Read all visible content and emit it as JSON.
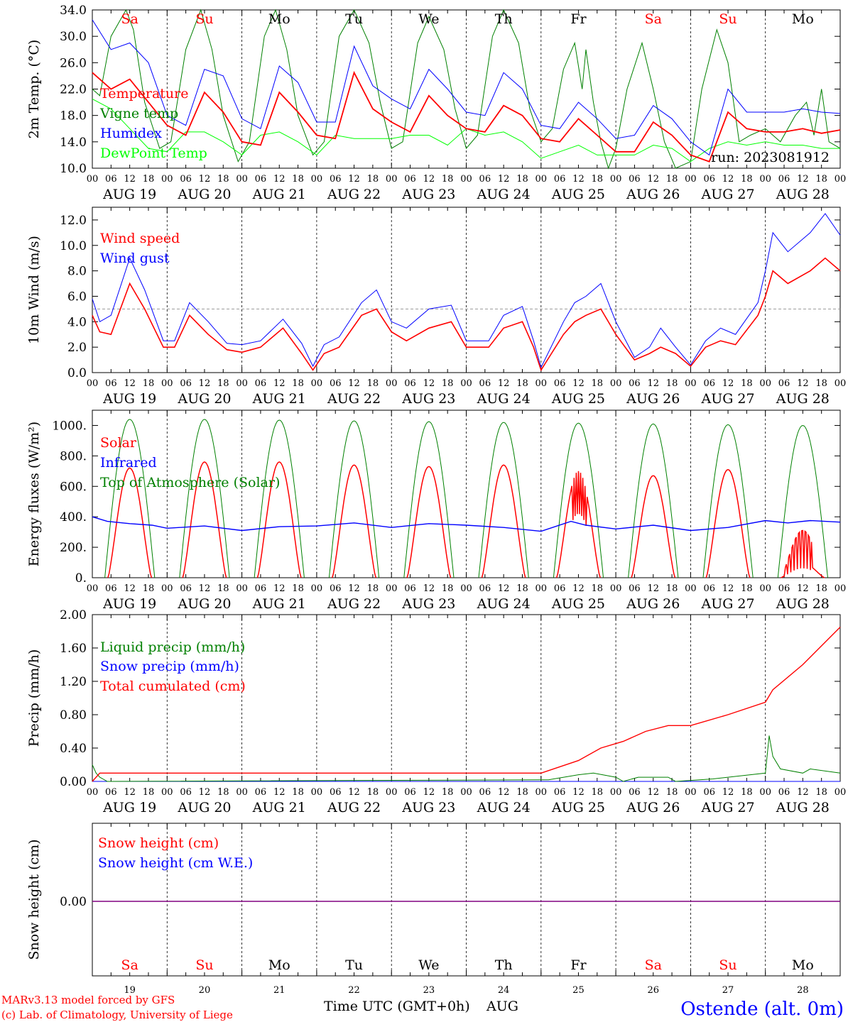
{
  "colors": {
    "red": "#ff0000",
    "green": "#008000",
    "blue": "#0000ff",
    "lime": "#00ff00",
    "purple": "#800080",
    "grey": "#999999"
  },
  "x_axis": {
    "hour_labels": [
      "00",
      "06",
      "12",
      "18"
    ],
    "end_label": "00",
    "date_labels": [
      "AUG 19",
      "AUG 20",
      "AUG 21",
      "AUG 22",
      "AUG 23",
      "AUG 24",
      "AUG 25",
      "AUG 26",
      "AUG 27",
      "AUG 28"
    ],
    "day_numbers": [
      "19",
      "20",
      "21",
      "22",
      "23",
      "24",
      "25",
      "26",
      "27",
      "28"
    ],
    "weekdays": [
      {
        "label": "Sa",
        "color": "#ff0000"
      },
      {
        "label": "Su",
        "color": "#ff0000"
      },
      {
        "label": "Mo",
        "color": "#000000"
      },
      {
        "label": "Tu",
        "color": "#000000"
      },
      {
        "label": "We",
        "color": "#000000"
      },
      {
        "label": "Th",
        "color": "#000000"
      },
      {
        "label": "Fr",
        "color": "#000000"
      },
      {
        "label": "Sa",
        "color": "#ff0000"
      },
      {
        "label": "Su",
        "color": "#ff0000"
      },
      {
        "label": "Mo",
        "color": "#000000"
      }
    ],
    "time_label": "Time UTC (GMT+0h)",
    "month_label": "AUG"
  },
  "footer": {
    "credit_line1": "MARv3.13 model forced by GFS",
    "credit_line2": "(c) Lab. of Climatology, University of Liege",
    "station": "Ostende (alt. 0m)"
  },
  "run_label": "run: 2023081912",
  "chart_data": [
    {
      "type": "line",
      "ylabel": "2m Temp. (°C)",
      "ylim": [
        10,
        34
      ],
      "yticks": [
        "10.0",
        "14.0",
        "18.0",
        "22.0",
        "26.0",
        "30.0",
        "34.0"
      ],
      "x_units": "days since AUG 19 00 UTC",
      "xlim": [
        0,
        10
      ],
      "series": [
        {
          "name": "Temperature",
          "color": "#ff0000",
          "x": [
            0,
            0.25,
            0.5,
            0.75,
            1,
            1.25,
            1.5,
            1.75,
            2,
            2.25,
            2.5,
            2.75,
            3,
            3.25,
            3.5,
            3.75,
            4,
            4.25,
            4.5,
            4.75,
            5,
            5.25,
            5.5,
            5.75,
            6,
            6.25,
            6.5,
            6.75,
            7,
            7.25,
            7.5,
            7.75,
            8,
            8.25,
            8.5,
            8.75,
            9,
            9.25,
            9.5,
            9.75,
            10
          ],
          "values": [
            24.5,
            22,
            23.5,
            20,
            16.5,
            15,
            21.5,
            18.5,
            14,
            13.5,
            21.5,
            18.5,
            15,
            14.5,
            24.5,
            19,
            17,
            15.5,
            21,
            18,
            16,
            15.5,
            19.5,
            18,
            14.5,
            14,
            17.5,
            15,
            12.5,
            12.5,
            17,
            15,
            12,
            11,
            18.5,
            16,
            15.5,
            15.5,
            16,
            15.3,
            15.8
          ]
        },
        {
          "name": "Vigne temp",
          "color": "#008000",
          "x": [
            0,
            0.1,
            0.25,
            0.45,
            0.55,
            0.7,
            0.9,
            1.05,
            1.25,
            1.45,
            1.6,
            1.75,
            1.95,
            2.1,
            2.3,
            2.45,
            2.6,
            2.75,
            2.95,
            3.1,
            3.3,
            3.5,
            3.7,
            3.85,
            4,
            4.15,
            4.35,
            4.5,
            4.7,
            4.85,
            5,
            5.15,
            5.35,
            5.5,
            5.7,
            5.85,
            6,
            6.15,
            6.3,
            6.45,
            6.55,
            6.6,
            6.7,
            6.8,
            6.9,
            7.0,
            7.15,
            7.35,
            7.5,
            7.65,
            7.8,
            8,
            8.15,
            8.35,
            8.5,
            8.65,
            8.8,
            9,
            9.2,
            9.4,
            9.55,
            9.65,
            9.75,
            9.85,
            10
          ],
          "values": [
            22,
            21,
            30,
            34,
            31,
            20,
            13,
            14,
            28,
            34,
            28,
            18,
            11,
            14,
            30,
            34,
            28,
            18,
            12,
            14,
            30,
            34,
            29,
            20,
            13,
            14,
            29,
            33,
            28,
            19,
            13,
            15,
            30,
            34,
            29,
            19,
            14,
            16,
            25,
            29,
            22,
            28,
            20,
            14,
            10,
            13,
            22,
            29,
            22,
            14,
            10,
            11,
            22,
            31,
            26,
            14,
            15,
            16,
            14,
            18,
            20,
            15,
            22,
            14,
            13
          ]
        },
        {
          "name": "Humidex",
          "color": "#0000ff",
          "x": [
            0,
            0.25,
            0.5,
            0.75,
            1,
            1.25,
            1.5,
            1.75,
            2,
            2.25,
            2.5,
            2.75,
            3,
            3.25,
            3.5,
            3.75,
            4,
            4.25,
            4.5,
            4.75,
            5,
            5.25,
            5.5,
            5.75,
            6,
            6.25,
            6.5,
            6.75,
            7,
            7.25,
            7.5,
            7.75,
            8,
            8.25,
            8.5,
            8.75,
            9,
            9.25,
            9.5,
            9.75,
            10
          ],
          "values": [
            32.5,
            28,
            29,
            26,
            18,
            16.5,
            25,
            24,
            17.5,
            16,
            25.5,
            23,
            17,
            17,
            28.5,
            22.5,
            20.5,
            19,
            25,
            22,
            18.5,
            18,
            24.5,
            22,
            16.5,
            16,
            20,
            17.5,
            14.5,
            15,
            19.5,
            17.5,
            14,
            12,
            22,
            18.5,
            18.5,
            18.5,
            19,
            18.5,
            18.3
          ]
        },
        {
          "name": "DewPoint Temp",
          "color": "#00ff00",
          "x": [
            0,
            0.25,
            0.5,
            0.75,
            1,
            1.25,
            1.5,
            1.75,
            2,
            2.25,
            2.5,
            2.75,
            3,
            3.25,
            3.5,
            3.75,
            4,
            4.25,
            4.5,
            4.75,
            5,
            5.25,
            5.5,
            5.75,
            6,
            6.25,
            6.5,
            6.75,
            7,
            7.25,
            7.5,
            7.75,
            8,
            8.25,
            8.5,
            8.75,
            9,
            9.25,
            9.5,
            9.75,
            10
          ],
          "values": [
            20.5,
            19,
            16,
            13,
            12.5,
            15.5,
            15.5,
            14,
            12,
            15,
            15.5,
            14,
            12,
            15,
            14.5,
            14.5,
            14.5,
            15,
            15,
            13.5,
            16,
            15,
            15.5,
            14,
            11.5,
            12.5,
            13.5,
            12,
            12,
            12,
            13.5,
            13,
            11,
            13,
            14,
            13.5,
            14,
            13.5,
            13.5,
            13,
            13
          ]
        }
      ]
    },
    {
      "type": "line",
      "ylabel": "10m Wind (m/s)",
      "ylim": [
        0,
        13
      ],
      "yticks": [
        "0.0",
        "2.0",
        "4.0",
        "6.0",
        "8.0",
        "10.0",
        "12.0"
      ],
      "reference_line": 5,
      "x_units": "days since AUG 19 00 UTC",
      "xlim": [
        0,
        10
      ],
      "series": [
        {
          "name": "Wind speed",
          "color": "#ff0000",
          "x": [
            0,
            0.1,
            0.25,
            0.5,
            0.7,
            0.95,
            1.1,
            1.3,
            1.55,
            1.8,
            2,
            2.25,
            2.55,
            2.8,
            2.95,
            3.1,
            3.3,
            3.6,
            3.8,
            4,
            4.2,
            4.5,
            4.8,
            5,
            5.3,
            5.5,
            5.75,
            5.9,
            6,
            6.3,
            6.45,
            6.6,
            6.8,
            7,
            7.25,
            7.45,
            7.6,
            7.8,
            8,
            8.2,
            8.4,
            8.6,
            8.9,
            9,
            9.1,
            9.3,
            9.6,
            9.8,
            10
          ],
          "values": [
            4.5,
            3.2,
            3,
            7,
            5,
            2,
            2,
            4.5,
            3,
            1.8,
            1.6,
            2,
            3.5,
            1.5,
            0.2,
            1.5,
            2,
            4.5,
            5,
            3.2,
            2.5,
            3.5,
            4,
            2,
            2,
            3.5,
            4,
            2,
            0.2,
            3,
            4,
            4.5,
            5,
            3,
            1,
            1.5,
            2,
            1.5,
            0.5,
            2,
            2.5,
            2.2,
            4.5,
            6,
            8,
            7,
            8,
            9,
            8
          ]
        },
        {
          "name": "Wind gust",
          "color": "#0000ff",
          "x": [
            0,
            0.1,
            0.25,
            0.5,
            0.7,
            0.95,
            1.1,
            1.3,
            1.55,
            1.8,
            2,
            2.25,
            2.55,
            2.8,
            2.95,
            3.1,
            3.3,
            3.6,
            3.8,
            4,
            4.2,
            4.5,
            4.8,
            5,
            5.3,
            5.5,
            5.75,
            5.9,
            6,
            6.3,
            6.45,
            6.6,
            6.8,
            7,
            7.25,
            7.45,
            7.6,
            7.8,
            8,
            8.2,
            8.4,
            8.6,
            8.9,
            9,
            9.1,
            9.3,
            9.6,
            9.8,
            10
          ],
          "values": [
            5.8,
            4,
            4.5,
            9,
            6.5,
            2.5,
            2.5,
            5.5,
            4,
            2.3,
            2.2,
            2.5,
            4.2,
            2.3,
            0.5,
            2.2,
            2.8,
            5.5,
            6.5,
            4,
            3.5,
            5,
            5.3,
            2.5,
            2.5,
            4.5,
            5.2,
            2.5,
            0.4,
            4,
            5.5,
            6,
            7,
            4,
            1.2,
            2,
            3.5,
            2,
            0.6,
            2.5,
            3.5,
            3,
            5.5,
            8,
            11,
            9.5,
            11,
            12.5,
            10.8
          ]
        }
      ]
    },
    {
      "type": "line",
      "ylabel": "Energy fluxes (W/m²)",
      "ylim": [
        0,
        1100
      ],
      "yticks": [
        "0.",
        "200.",
        "400.",
        "600.",
        "800.",
        "1000."
      ],
      "x_units": "days since AUG 19 00 UTC",
      "xlim": [
        0,
        10
      ],
      "daily_peaks": {
        "solar": [
          720,
          760,
          760,
          740,
          730,
          740,
          700,
          670,
          710,
          310
        ],
        "top_of_atmosphere": [
          1040,
          1040,
          1035,
          1030,
          1025,
          1020,
          1015,
          1010,
          1005,
          1000
        ]
      },
      "series": [
        {
          "name": "Solar",
          "color": "#ff0000",
          "x": [],
          "values": []
        },
        {
          "name": "Infrared",
          "color": "#0000ff",
          "x": [
            0,
            0.2,
            0.5,
            0.8,
            1,
            1.5,
            2,
            2.5,
            3,
            3.5,
            4,
            4.5,
            5,
            5.5,
            6,
            6.4,
            6.6,
            7,
            7.5,
            8,
            8.5,
            9,
            9.3,
            9.6,
            10
          ],
          "values": [
            400,
            370,
            355,
            345,
            325,
            340,
            310,
            335,
            340,
            360,
            330,
            355,
            345,
            330,
            305,
            370,
            345,
            320,
            345,
            310,
            330,
            375,
            360,
            375,
            365
          ]
        },
        {
          "name": "Top of Atmosphere (Solar)",
          "color": "#008000",
          "x": [],
          "values": []
        }
      ]
    },
    {
      "type": "line",
      "ylabel": "Precip (mm/h)",
      "ylim": [
        0,
        2
      ],
      "yticks": [
        "0.00",
        "0.40",
        "0.80",
        "1.20",
        "1.60",
        "2.00"
      ],
      "x_units": "days since AUG 19 00 UTC",
      "xlim": [
        0,
        10
      ],
      "series": [
        {
          "name": "Liquid precip (mm/h)",
          "color": "#008000",
          "x": [
            0,
            0.05,
            0.1,
            0.2,
            6.1,
            6.5,
            6.7,
            7,
            7.1,
            7.3,
            7.7,
            7.8,
            8.3,
            8.8,
            9,
            9.05,
            9.1,
            9.2,
            9.5,
            9.6,
            10
          ],
          "values": [
            0.2,
            0.1,
            0.05,
            0,
            0.02,
            0.08,
            0.1,
            0.05,
            0,
            0.05,
            0.05,
            0,
            0.03,
            0.08,
            0.1,
            0.55,
            0.3,
            0.15,
            0.1,
            0.15,
            0.1
          ]
        },
        {
          "name": "Snow precip (mm/h)",
          "color": "#0000ff",
          "x": [
            0,
            10
          ],
          "values": [
            0,
            0
          ]
        },
        {
          "name": "Total cumulated (cm)",
          "color": "#ff0000",
          "x": [
            0,
            0.1,
            6,
            6.5,
            6.8,
            7.1,
            7.4,
            7.7,
            8,
            8.5,
            9,
            9.1,
            9.5,
            10
          ],
          "values": [
            0,
            0.1,
            0.1,
            0.25,
            0.4,
            0.48,
            0.6,
            0.67,
            0.67,
            0.8,
            0.95,
            1.1,
            1.4,
            1.85
          ]
        }
      ]
    },
    {
      "type": "line",
      "ylabel": "Snow height (cm)",
      "yticks": [
        "0.00"
      ],
      "x_units": "days since AUG 19 00 UTC",
      "xlim": [
        0,
        10
      ],
      "series": [
        {
          "name": "Snow height (cm)",
          "color": "#ff0000",
          "x": [
            0,
            10
          ],
          "values": [
            0,
            0
          ]
        },
        {
          "name": "Snow height (cm W.E.)",
          "color": "#0000ff",
          "x": [
            0,
            10
          ],
          "values": [
            0,
            0
          ]
        }
      ]
    }
  ]
}
